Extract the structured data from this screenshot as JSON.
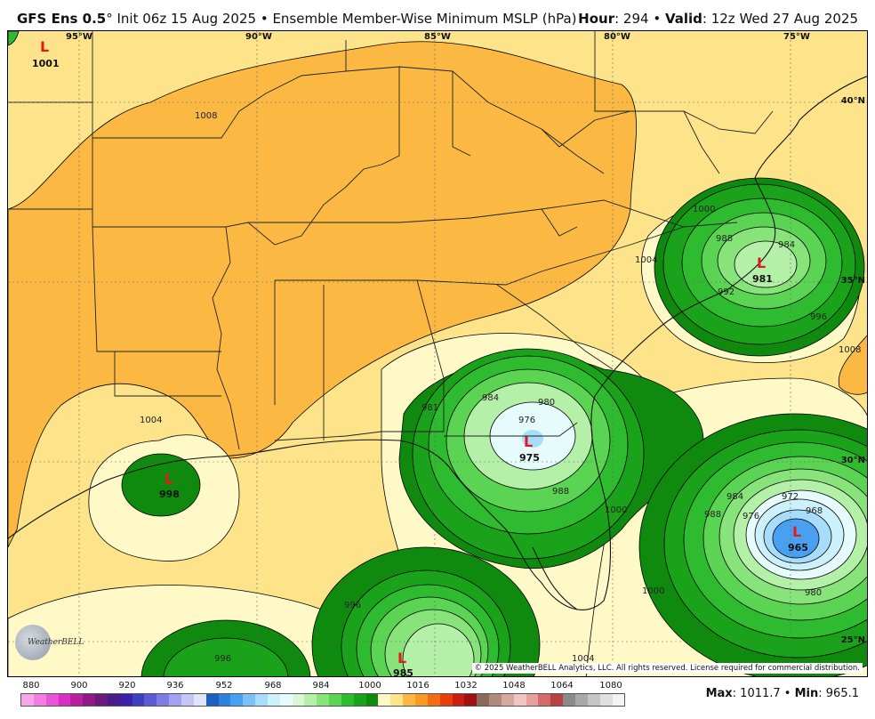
{
  "header": {
    "model": "GFS Ens 0.5",
    "degree": "°",
    "init": " Init 06z 15 Aug 2025 • Ensemble Member-Wise Minimum MSLP (hPa)",
    "hour_label": "Hour",
    "hour_value": ": 294 • ",
    "valid_label": "Valid",
    "valid_value": ": 12z Wed 27 Aug 2025"
  },
  "longitudes": [
    "95°W",
    "90°W",
    "85°W",
    "80°W",
    "75°W"
  ],
  "latitudes": [
    "40°N",
    "35°N",
    "30°N",
    "25°N"
  ],
  "lows": [
    {
      "letter": "L",
      "value": "1001"
    },
    {
      "letter": "L",
      "value": "981"
    },
    {
      "letter": "L",
      "value": "975"
    },
    {
      "letter": "L",
      "value": "998"
    },
    {
      "letter": "L",
      "value": "965"
    },
    {
      "letter": "L",
      "value": "985"
    }
  ],
  "contour_labels": [
    "1008",
    "1004",
    "1000",
    "988",
    "984",
    "992",
    "996",
    "981",
    "980",
    "976",
    "972",
    "968",
    "1008",
    "1004",
    "1000",
    "984",
    "988",
    "996",
    "996",
    "1004",
    "1000",
    "980",
    "988",
    "984",
    "976"
  ],
  "credit": "© 2025 WeatherBELL Analytics, LLC. All rights reserved. License required for commercial distribution.",
  "logo_text": "WeatherBELL",
  "scale": {
    "labels": [
      "880",
      "900",
      "920",
      "936",
      "952",
      "968",
      "984",
      "1000",
      "1016",
      "1032",
      "1048",
      "1064",
      "1080"
    ],
    "colors": [
      "#f7a6e8",
      "#f07fe0",
      "#e655d6",
      "#d92fc4",
      "#b8209f",
      "#8f1a86",
      "#6a1a7c",
      "#4a1c8a",
      "#3a23a8",
      "#3f3fc4",
      "#5b5bd6",
      "#7c7ce4",
      "#a2a2ee",
      "#c6c6f6",
      "#e0e6f8",
      "#1f5fbf",
      "#2e7fe0",
      "#4aa0f0",
      "#7cc0f8",
      "#a8dcfb",
      "#cdf1fb",
      "#e6fbfc",
      "#d8f7d2",
      "#b5f0a8",
      "#87e37a",
      "#5ad452",
      "#2fbb2f",
      "#1aa31a",
      "#0f8a0f",
      "#fff9c8",
      "#fde38a",
      "#fbb944",
      "#f99a22",
      "#f36b12",
      "#e63f0d",
      "#c81f12",
      "#a01212",
      "#8a6a5a",
      "#b08a7a",
      "#d6a8a0",
      "#f2c6c0",
      "#e6a0a0",
      "#d46a6a",
      "#b84242",
      "#8a8a8a",
      "#a8a8a8",
      "#c6c6c6",
      "#e0e0e0",
      "#f4f4f4"
    ]
  },
  "footer": {
    "max_label": "Max",
    "max_value": ": 1011.7 • ",
    "min_label": "Min",
    "min_value": ": 965.1"
  },
  "colors": {
    "band_1004_1008": "#fde38a",
    "band_above_1008": "#fbb944",
    "band_1000_1004": "#fff9c8",
    "green_dark": "#0f8a0f",
    "green_mid": "#2fbb2f",
    "green_light": "#87e37a",
    "blue_low": "#4aa0f0",
    "low_marker": "#e31a1c"
  }
}
